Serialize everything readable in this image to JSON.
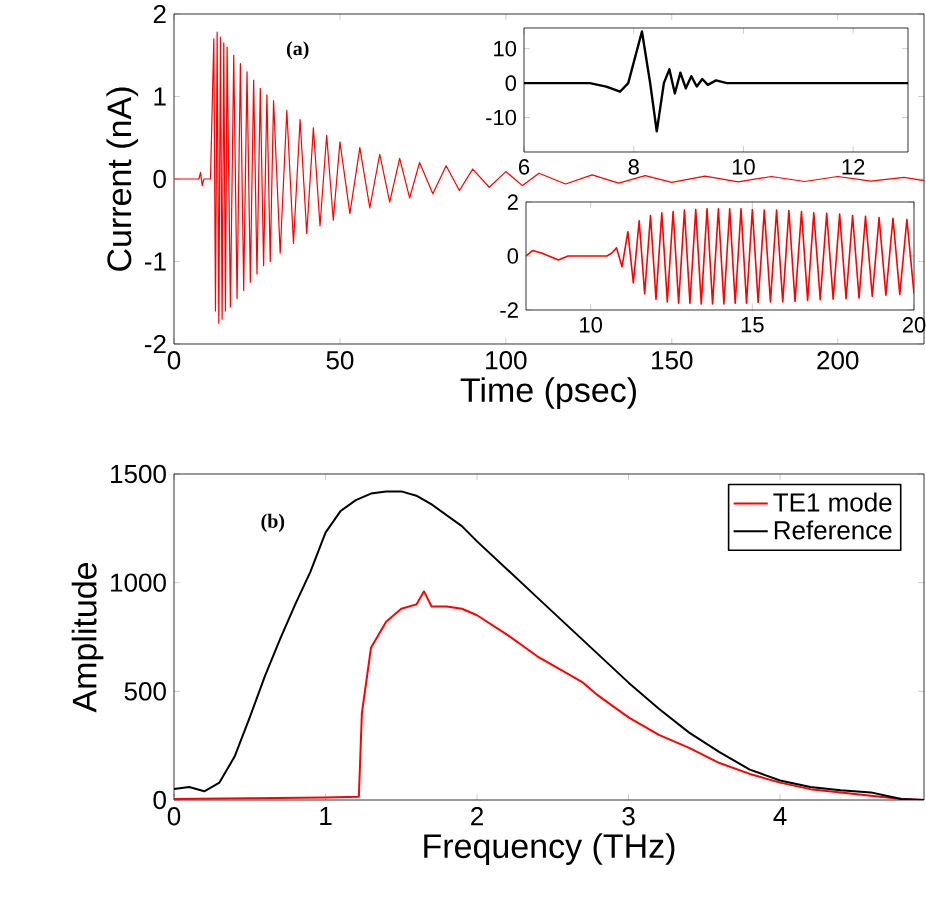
{
  "chart_data": [
    {
      "type": "line",
      "xlabel": "Time (psec)",
      "ylabel": "Current (nA)",
      "xlim": [
        0,
        226
      ],
      "ylim": [
        -2,
        2
      ],
      "xticks": [
        0,
        50,
        100,
        150,
        200
      ],
      "yticks": [
        -2,
        -1,
        0,
        1,
        2
      ],
      "marker": "none",
      "line_style": "solid",
      "annotations": [
        "(a)"
      ],
      "series": [
        {
          "color": "#ff0000",
          "x": [
            0,
            7.5,
            8,
            8.5,
            9,
            11,
            12,
            12.5,
            13,
            13.5,
            14,
            14.5,
            15,
            15.5,
            16,
            17,
            18,
            19,
            20,
            21,
            22,
            23,
            24,
            25,
            26,
            27,
            28,
            29,
            30,
            32,
            34,
            36,
            38,
            40,
            42,
            44,
            46,
            48,
            50,
            53,
            56,
            59,
            62,
            65,
            68,
            71,
            74,
            78,
            82,
            86,
            90,
            95,
            100,
            105,
            110,
            118,
            126,
            134,
            142,
            150,
            160,
            170,
            180,
            190,
            200,
            210,
            220,
            226
          ],
          "values": [
            0,
            0,
            0.08,
            -0.08,
            0,
            0,
            1.7,
            -1.6,
            1.78,
            -1.75,
            1.72,
            -1.7,
            1.65,
            -1.6,
            1.6,
            -1.55,
            1.5,
            -1.45,
            1.4,
            -1.35,
            1.3,
            -1.25,
            1.2,
            -1.15,
            1.1,
            -1.05,
            1.02,
            -1.0,
            0.95,
            -0.9,
            0.83,
            -0.78,
            0.72,
            -0.66,
            0.62,
            -0.57,
            0.53,
            -0.5,
            0.45,
            -0.42,
            0.38,
            -0.35,
            0.3,
            -0.28,
            0.25,
            -0.23,
            0.2,
            -0.18,
            0.16,
            -0.14,
            0.12,
            -0.1,
            0.09,
            -0.08,
            0.07,
            -0.06,
            0.05,
            -0.05,
            0.04,
            -0.04,
            0.035,
            -0.035,
            0.03,
            -0.03,
            0.03,
            -0.025,
            0.02,
            -0.02
          ]
        }
      ]
    },
    {
      "type": "line",
      "xlim": [
        6,
        13
      ],
      "ylim": [
        -20,
        16
      ],
      "xticks": [
        6,
        8,
        10,
        12
      ],
      "yticks": [
        -10,
        0,
        10
      ],
      "marker": "none",
      "line_style": "solid",
      "series": [
        {
          "color": "#000000",
          "x": [
            6,
            7.2,
            7.5,
            7.75,
            7.9,
            8.15,
            8.3,
            8.42,
            8.55,
            8.65,
            8.75,
            8.85,
            8.95,
            9.05,
            9.15,
            9.25,
            9.35,
            9.5,
            9.7,
            13
          ],
          "values": [
            0,
            0,
            -1,
            -2.5,
            0,
            15,
            0,
            -14,
            0,
            4,
            -3,
            3,
            -1.5,
            2,
            -1,
            1.2,
            -0.5,
            0.8,
            0,
            0
          ]
        }
      ]
    },
    {
      "type": "line",
      "xlim": [
        8,
        20
      ],
      "ylim": [
        -2,
        2
      ],
      "xticks": [
        10,
        15,
        20
      ],
      "yticks": [
        -2,
        0,
        2
      ],
      "marker": "none",
      "line_style": "solid",
      "series": [
        {
          "color": "#ff0000",
          "x": [
            8,
            8.2,
            8.5,
            8.8,
            9.0,
            9.3,
            10.5,
            10.65,
            10.8,
            10.97,
            11.15,
            11.32,
            11.5,
            11.67,
            11.85,
            12.02,
            12.2,
            12.37,
            12.55,
            12.72,
            12.9,
            13.07,
            13.25,
            13.42,
            13.6,
            13.77,
            13.95,
            14.12,
            14.3,
            14.47,
            14.65,
            14.82,
            15.0,
            15.18,
            15.37,
            15.56,
            15.75,
            15.94,
            16.13,
            16.32,
            16.52,
            16.71,
            16.9,
            17.1,
            17.3,
            17.5,
            17.7,
            17.9,
            18.1,
            18.3,
            18.5,
            18.71,
            18.92,
            19.13,
            19.35,
            19.56,
            19.78,
            20
          ],
          "values": [
            0,
            0.2,
            0.1,
            -0.05,
            -0.15,
            0,
            0,
            0.1,
            0.3,
            -0.4,
            0.9,
            -1.0,
            1.3,
            -1.4,
            1.5,
            -1.6,
            1.6,
            -1.7,
            1.65,
            -1.75,
            1.7,
            -1.75,
            1.72,
            -1.78,
            1.75,
            -1.78,
            1.75,
            -1.78,
            1.75,
            -1.75,
            1.75,
            -1.75,
            1.72,
            -1.72,
            1.7,
            -1.7,
            1.7,
            -1.7,
            1.68,
            -1.68,
            1.65,
            -1.65,
            1.6,
            -1.62,
            1.58,
            -1.6,
            1.55,
            -1.58,
            1.5,
            -1.55,
            1.47,
            -1.5,
            1.42,
            -1.45,
            1.4,
            -1.42,
            1.35,
            -1.4
          ]
        }
      ]
    },
    {
      "type": "line",
      "xlabel": "Frequency (THz)",
      "ylabel": "Amplitude",
      "xlim": [
        0,
        4.95
      ],
      "ylim": [
        0,
        1500
      ],
      "xticks": [
        0,
        1,
        2,
        3,
        4
      ],
      "yticks": [
        0,
        500,
        1000,
        1500
      ],
      "marker": "none",
      "line_style": "solid",
      "legend": "top right",
      "annotations": [
        "(b)"
      ],
      "series": [
        {
          "name": "TE1 mode",
          "color": "#ff0000",
          "x": [
            0,
            0.5,
            1.0,
            1.22,
            1.24,
            1.3,
            1.4,
            1.5,
            1.6,
            1.65,
            1.7,
            1.8,
            1.9,
            2.0,
            2.2,
            2.4,
            2.6,
            2.7,
            2.8,
            3.0,
            3.2,
            3.4,
            3.6,
            3.8,
            4.0,
            4.2,
            4.4,
            4.6,
            4.8,
            4.95
          ],
          "values": [
            5,
            8,
            12,
            15,
            400,
            700,
            820,
            880,
            900,
            960,
            890,
            890,
            880,
            850,
            760,
            660,
            580,
            540,
            480,
            380,
            300,
            240,
            170,
            120,
            80,
            50,
            35,
            20,
            5,
            0
          ]
        },
        {
          "name": "Reference",
          "color": "#000000",
          "x": [
            0,
            0.1,
            0.2,
            0.3,
            0.4,
            0.5,
            0.6,
            0.7,
            0.8,
            0.9,
            1.0,
            1.1,
            1.2,
            1.3,
            1.4,
            1.5,
            1.6,
            1.7,
            1.8,
            1.9,
            2.0,
            2.2,
            2.4,
            2.6,
            2.8,
            3.0,
            3.2,
            3.4,
            3.6,
            3.8,
            4.0,
            4.2,
            4.4,
            4.6,
            4.7,
            4.8,
            4.95
          ],
          "values": [
            50,
            60,
            40,
            80,
            200,
            380,
            570,
            740,
            900,
            1050,
            1230,
            1330,
            1380,
            1410,
            1420,
            1420,
            1400,
            1360,
            1310,
            1260,
            1190,
            1060,
            930,
            800,
            670,
            540,
            420,
            310,
            220,
            140,
            90,
            60,
            45,
            35,
            20,
            5,
            0
          ]
        }
      ]
    }
  ]
}
